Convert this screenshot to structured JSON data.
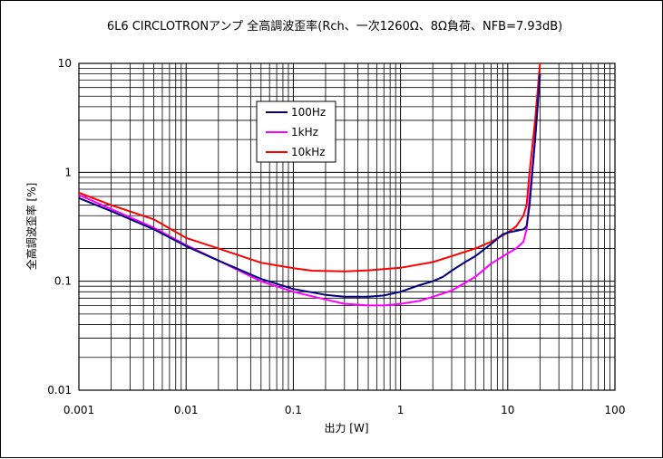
{
  "chart_data": {
    "type": "line",
    "title": "6L6 CIRCLOTRONアンプ 全高調波歪率(Rch、一次1260Ω、8Ω負荷、NFB=7.93dB)",
    "xlabel": "出力 [W]",
    "ylabel": "全高調波歪率 [%]",
    "x_scale": "log",
    "y_scale": "log",
    "xlim": [
      0.001,
      100
    ],
    "ylim": [
      0.01,
      10
    ],
    "grid": true,
    "legend": "upper-left (inside plot)",
    "x_tick_labels": [
      "0.001",
      "0.01",
      "0.1",
      "1",
      "10",
      "100"
    ],
    "y_tick_labels": [
      "10",
      "1",
      "0.1",
      "0.01"
    ],
    "series": [
      {
        "name": "100Hz",
        "color": "#000080",
        "points": [
          [
            0.001,
            0.58
          ],
          [
            0.002,
            0.44
          ],
          [
            0.005,
            0.3
          ],
          [
            0.01,
            0.21
          ],
          [
            0.02,
            0.155
          ],
          [
            0.05,
            0.105
          ],
          [
            0.1,
            0.085
          ],
          [
            0.2,
            0.075
          ],
          [
            0.3,
            0.072
          ],
          [
            0.5,
            0.072
          ],
          [
            0.7,
            0.074
          ],
          [
            1,
            0.08
          ],
          [
            1.5,
            0.092
          ],
          [
            2,
            0.1
          ],
          [
            2.5,
            0.11
          ],
          [
            3,
            0.125
          ],
          [
            4,
            0.15
          ],
          [
            5,
            0.17
          ],
          [
            7,
            0.22
          ],
          [
            9,
            0.27
          ],
          [
            10,
            0.28
          ],
          [
            12,
            0.29
          ],
          [
            14,
            0.3
          ],
          [
            15,
            0.32
          ],
          [
            16,
            0.5
          ],
          [
            18,
            2.0
          ],
          [
            20,
            8.0
          ]
        ]
      },
      {
        "name": "1kHz",
        "color": "#ff00ff",
        "points": [
          [
            0.001,
            0.62
          ],
          [
            0.002,
            0.46
          ],
          [
            0.005,
            0.31
          ],
          [
            0.01,
            0.215
          ],
          [
            0.02,
            0.155
          ],
          [
            0.05,
            0.1
          ],
          [
            0.1,
            0.08
          ],
          [
            0.2,
            0.068
          ],
          [
            0.3,
            0.062
          ],
          [
            0.5,
            0.06
          ],
          [
            0.7,
            0.06
          ],
          [
            1,
            0.062
          ],
          [
            1.5,
            0.066
          ],
          [
            2,
            0.072
          ],
          [
            3,
            0.082
          ],
          [
            5,
            0.11
          ],
          [
            7,
            0.145
          ],
          [
            10,
            0.18
          ],
          [
            12,
            0.2
          ],
          [
            14,
            0.23
          ],
          [
            15,
            0.3
          ],
          [
            16,
            0.6
          ],
          [
            18,
            2.0
          ],
          [
            20,
            8.0
          ]
        ]
      },
      {
        "name": "10kHz",
        "color": "#ff0000",
        "points": [
          [
            0.001,
            0.65
          ],
          [
            0.002,
            0.5
          ],
          [
            0.005,
            0.37
          ],
          [
            0.01,
            0.25
          ],
          [
            0.02,
            0.2
          ],
          [
            0.03,
            0.175
          ],
          [
            0.05,
            0.148
          ],
          [
            0.07,
            0.14
          ],
          [
            0.1,
            0.132
          ],
          [
            0.15,
            0.125
          ],
          [
            0.3,
            0.123
          ],
          [
            0.5,
            0.126
          ],
          [
            1,
            0.133
          ],
          [
            2,
            0.15
          ],
          [
            3,
            0.17
          ],
          [
            5,
            0.2
          ],
          [
            7,
            0.23
          ],
          [
            10,
            0.28
          ],
          [
            12,
            0.32
          ],
          [
            14,
            0.4
          ],
          [
            15,
            0.5
          ],
          [
            16,
            1.0
          ],
          [
            18,
            3.0
          ],
          [
            20,
            10.0
          ]
        ]
      }
    ]
  }
}
